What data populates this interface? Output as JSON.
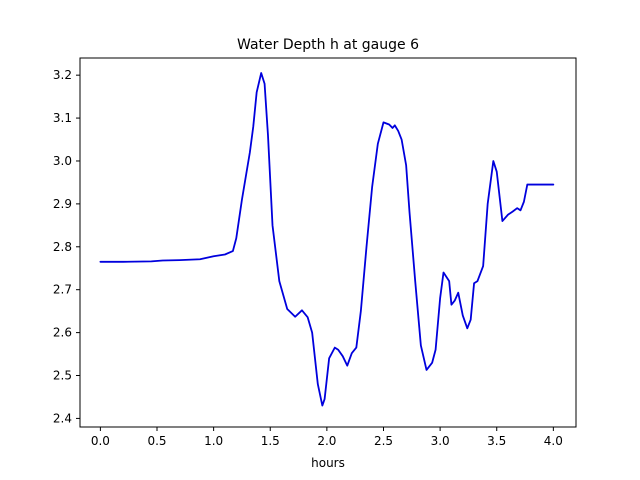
{
  "chart_data": {
    "type": "line",
    "title": "Water Depth h at gauge 6",
    "xlabel": "hours",
    "ylabel": "",
    "xlim": [
      -0.18,
      4.2
    ],
    "ylim": [
      2.38,
      3.24
    ],
    "x_ticks": [
      0.0,
      0.5,
      1.0,
      1.5,
      2.0,
      2.5,
      3.0,
      3.5,
      4.0
    ],
    "x_tick_labels": [
      "0.0",
      "0.5",
      "1.0",
      "1.5",
      "2.0",
      "2.5",
      "3.0",
      "3.5",
      "4.0"
    ],
    "y_ticks": [
      2.4,
      2.5,
      2.6,
      2.7,
      2.8,
      2.9,
      3.0,
      3.1,
      3.2
    ],
    "y_tick_labels": [
      "2.4",
      "2.5",
      "2.6",
      "2.7",
      "2.8",
      "2.9",
      "3.0",
      "3.1",
      "3.2"
    ],
    "grid": false,
    "line_color": "#0000dd",
    "series": [
      {
        "name": "",
        "x": [
          0.0,
          0.2,
          0.45,
          0.55,
          0.7,
          0.88,
          0.95,
          1.0,
          1.1,
          1.17,
          1.2,
          1.25,
          1.32,
          1.35,
          1.38,
          1.42,
          1.45,
          1.48,
          1.52,
          1.58,
          1.65,
          1.72,
          1.78,
          1.83,
          1.87,
          1.92,
          1.96,
          1.98,
          2.02,
          2.07,
          2.1,
          2.14,
          2.18,
          2.22,
          2.26,
          2.3,
          2.35,
          2.4,
          2.45,
          2.5,
          2.55,
          2.58,
          2.6,
          2.63,
          2.66,
          2.7,
          2.73,
          2.78,
          2.83,
          2.88,
          2.93,
          2.96,
          3.0,
          3.03,
          3.08,
          3.1,
          3.13,
          3.16,
          3.2,
          3.24,
          3.27,
          3.3,
          3.33,
          3.38,
          3.42,
          3.47,
          3.5,
          3.55,
          3.6,
          3.64,
          3.68,
          3.71,
          3.74,
          3.77,
          3.8,
          3.83,
          3.86,
          3.9,
          3.94,
          3.97,
          4.0
        ],
        "y": [
          2.765,
          2.765,
          2.766,
          2.768,
          2.769,
          2.771,
          2.775,
          2.778,
          2.782,
          2.79,
          2.82,
          2.91,
          3.02,
          3.08,
          3.16,
          3.205,
          3.18,
          3.06,
          2.85,
          2.72,
          2.655,
          2.637,
          2.652,
          2.636,
          2.6,
          2.48,
          2.43,
          2.445,
          2.54,
          2.565,
          2.56,
          2.545,
          2.523,
          2.552,
          2.565,
          2.65,
          2.8,
          2.94,
          3.04,
          3.09,
          3.085,
          3.077,
          3.083,
          3.07,
          3.05,
          2.99,
          2.88,
          2.72,
          2.57,
          2.513,
          2.53,
          2.56,
          2.68,
          2.74,
          2.72,
          2.665,
          2.675,
          2.693,
          2.64,
          2.61,
          2.63,
          2.715,
          2.72,
          2.755,
          2.9,
          3.0,
          2.975,
          2.86,
          2.875,
          2.882,
          2.89,
          2.885,
          2.905,
          2.945,
          2.945,
          2.945,
          2.945,
          2.945,
          2.945,
          2.945,
          2.945
        ]
      }
    ]
  }
}
